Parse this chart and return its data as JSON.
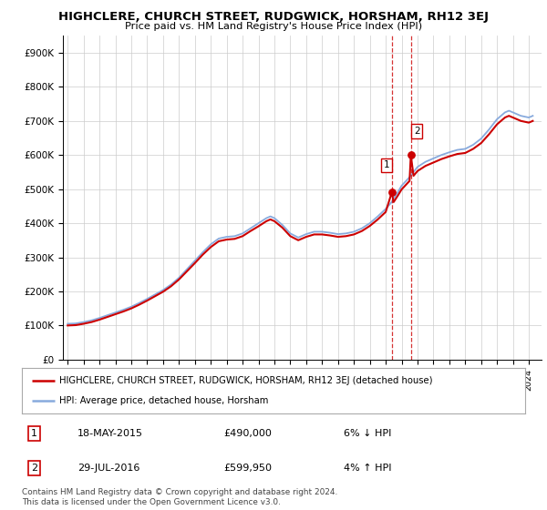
{
  "title": "HIGHCLERE, CHURCH STREET, RUDGWICK, HORSHAM, RH12 3EJ",
  "subtitle": "Price paid vs. HM Land Registry's House Price Index (HPI)",
  "ylim": [
    0,
    950000
  ],
  "yticks": [
    0,
    100000,
    200000,
    300000,
    400000,
    500000,
    600000,
    700000,
    800000,
    900000
  ],
  "ytick_labels": [
    "£0",
    "£100K",
    "£200K",
    "£300K",
    "£400K",
    "£500K",
    "£600K",
    "£700K",
    "£800K",
    "£900K"
  ],
  "background_color": "#ffffff",
  "plot_bg_color": "#ffffff",
  "grid_color": "#cccccc",
  "hpi_color": "#88aadd",
  "price_color": "#cc0000",
  "transactions": [
    {
      "date_num": 2015.38,
      "price": 490000,
      "label": "1",
      "pct": "6%",
      "dir": "↓",
      "date_str": "18-MAY-2015"
    },
    {
      "date_num": 2016.58,
      "price": 599950,
      "label": "2",
      "pct": "4%",
      "dir": "↑",
      "date_str": "29-JUL-2016"
    }
  ],
  "legend_line1": "HIGHCLERE, CHURCH STREET, RUDGWICK, HORSHAM, RH12 3EJ (detached house)",
  "legend_line2": "HPI: Average price, detached house, Horsham",
  "footnote": "Contains HM Land Registry data © Crown copyright and database right 2024.\nThis data is licensed under the Open Government Licence v3.0.",
  "hpi_data": [
    [
      1995.0,
      105000
    ],
    [
      1995.5,
      106000
    ],
    [
      1996.0,
      110000
    ],
    [
      1996.5,
      115000
    ],
    [
      1997.0,
      122000
    ],
    [
      1997.5,
      130000
    ],
    [
      1998.0,
      138000
    ],
    [
      1998.5,
      146000
    ],
    [
      1999.0,
      155000
    ],
    [
      1999.5,
      166000
    ],
    [
      2000.0,
      178000
    ],
    [
      2000.5,
      191000
    ],
    [
      2001.0,
      204000
    ],
    [
      2001.5,
      220000
    ],
    [
      2002.0,
      240000
    ],
    [
      2002.5,
      265000
    ],
    [
      2003.0,
      290000
    ],
    [
      2003.5,
      315000
    ],
    [
      2004.0,
      338000
    ],
    [
      2004.5,
      355000
    ],
    [
      2005.0,
      360000
    ],
    [
      2005.5,
      362000
    ],
    [
      2006.0,
      370000
    ],
    [
      2006.5,
      385000
    ],
    [
      2007.0,
      400000
    ],
    [
      2007.5,
      415000
    ],
    [
      2007.75,
      420000
    ],
    [
      2008.0,
      415000
    ],
    [
      2008.5,
      395000
    ],
    [
      2009.0,
      370000
    ],
    [
      2009.5,
      358000
    ],
    [
      2010.0,
      368000
    ],
    [
      2010.5,
      375000
    ],
    [
      2011.0,
      375000
    ],
    [
      2011.5,
      372000
    ],
    [
      2012.0,
      368000
    ],
    [
      2012.5,
      370000
    ],
    [
      2013.0,
      375000
    ],
    [
      2013.5,
      385000
    ],
    [
      2014.0,
      400000
    ],
    [
      2014.5,
      420000
    ],
    [
      2015.0,
      442000
    ],
    [
      2015.38,
      462000
    ],
    [
      2015.5,
      472000
    ],
    [
      2015.75,
      490000
    ],
    [
      2016.0,
      510000
    ],
    [
      2016.5,
      535000
    ],
    [
      2016.58,
      540000
    ],
    [
      2016.75,
      550000
    ],
    [
      2017.0,
      565000
    ],
    [
      2017.5,
      580000
    ],
    [
      2018.0,
      590000
    ],
    [
      2018.5,
      600000
    ],
    [
      2019.0,
      608000
    ],
    [
      2019.5,
      615000
    ],
    [
      2020.0,
      618000
    ],
    [
      2020.5,
      630000
    ],
    [
      2021.0,
      648000
    ],
    [
      2021.5,
      675000
    ],
    [
      2022.0,
      705000
    ],
    [
      2022.5,
      725000
    ],
    [
      2022.75,
      730000
    ],
    [
      2023.0,
      725000
    ],
    [
      2023.5,
      715000
    ],
    [
      2024.0,
      710000
    ],
    [
      2024.25,
      715000
    ]
  ],
  "price_data": [
    [
      1995.0,
      100000
    ],
    [
      1995.5,
      101000
    ],
    [
      1996.0,
      105000
    ],
    [
      1996.5,
      110000
    ],
    [
      1997.0,
      117000
    ],
    [
      1997.5,
      125000
    ],
    [
      1998.0,
      133000
    ],
    [
      1998.5,
      141000
    ],
    [
      1999.0,
      150000
    ],
    [
      1999.5,
      161000
    ],
    [
      2000.0,
      173000
    ],
    [
      2000.5,
      186000
    ],
    [
      2001.0,
      199000
    ],
    [
      2001.5,
      215000
    ],
    [
      2002.0,
      235000
    ],
    [
      2002.5,
      259000
    ],
    [
      2003.0,
      283000
    ],
    [
      2003.5,
      308000
    ],
    [
      2004.0,
      330000
    ],
    [
      2004.5,
      347000
    ],
    [
      2005.0,
      352000
    ],
    [
      2005.5,
      354000
    ],
    [
      2006.0,
      362000
    ],
    [
      2006.5,
      377000
    ],
    [
      2007.0,
      391000
    ],
    [
      2007.5,
      406000
    ],
    [
      2007.75,
      411000
    ],
    [
      2008.0,
      406000
    ],
    [
      2008.5,
      387000
    ],
    [
      2009.0,
      362000
    ],
    [
      2009.5,
      350000
    ],
    [
      2010.0,
      360000
    ],
    [
      2010.5,
      367000
    ],
    [
      2011.0,
      367000
    ],
    [
      2011.5,
      364000
    ],
    [
      2012.0,
      360000
    ],
    [
      2012.5,
      362000
    ],
    [
      2013.0,
      367000
    ],
    [
      2013.5,
      377000
    ],
    [
      2014.0,
      392000
    ],
    [
      2014.5,
      411000
    ],
    [
      2015.0,
      433000
    ],
    [
      2015.38,
      490000
    ],
    [
      2015.5,
      462000
    ],
    [
      2015.75,
      480000
    ],
    [
      2016.0,
      499000
    ],
    [
      2016.5,
      524000
    ],
    [
      2016.58,
      599950
    ],
    [
      2016.75,
      539000
    ],
    [
      2017.0,
      553000
    ],
    [
      2017.5,
      568000
    ],
    [
      2018.0,
      578000
    ],
    [
      2018.5,
      588000
    ],
    [
      2019.0,
      596000
    ],
    [
      2019.5,
      603000
    ],
    [
      2020.0,
      606000
    ],
    [
      2020.5,
      618000
    ],
    [
      2021.0,
      635000
    ],
    [
      2021.5,
      661000
    ],
    [
      2022.0,
      690000
    ],
    [
      2022.5,
      710000
    ],
    [
      2022.75,
      715000
    ],
    [
      2023.0,
      710000
    ],
    [
      2023.5,
      700000
    ],
    [
      2024.0,
      695000
    ],
    [
      2024.25,
      700000
    ]
  ]
}
